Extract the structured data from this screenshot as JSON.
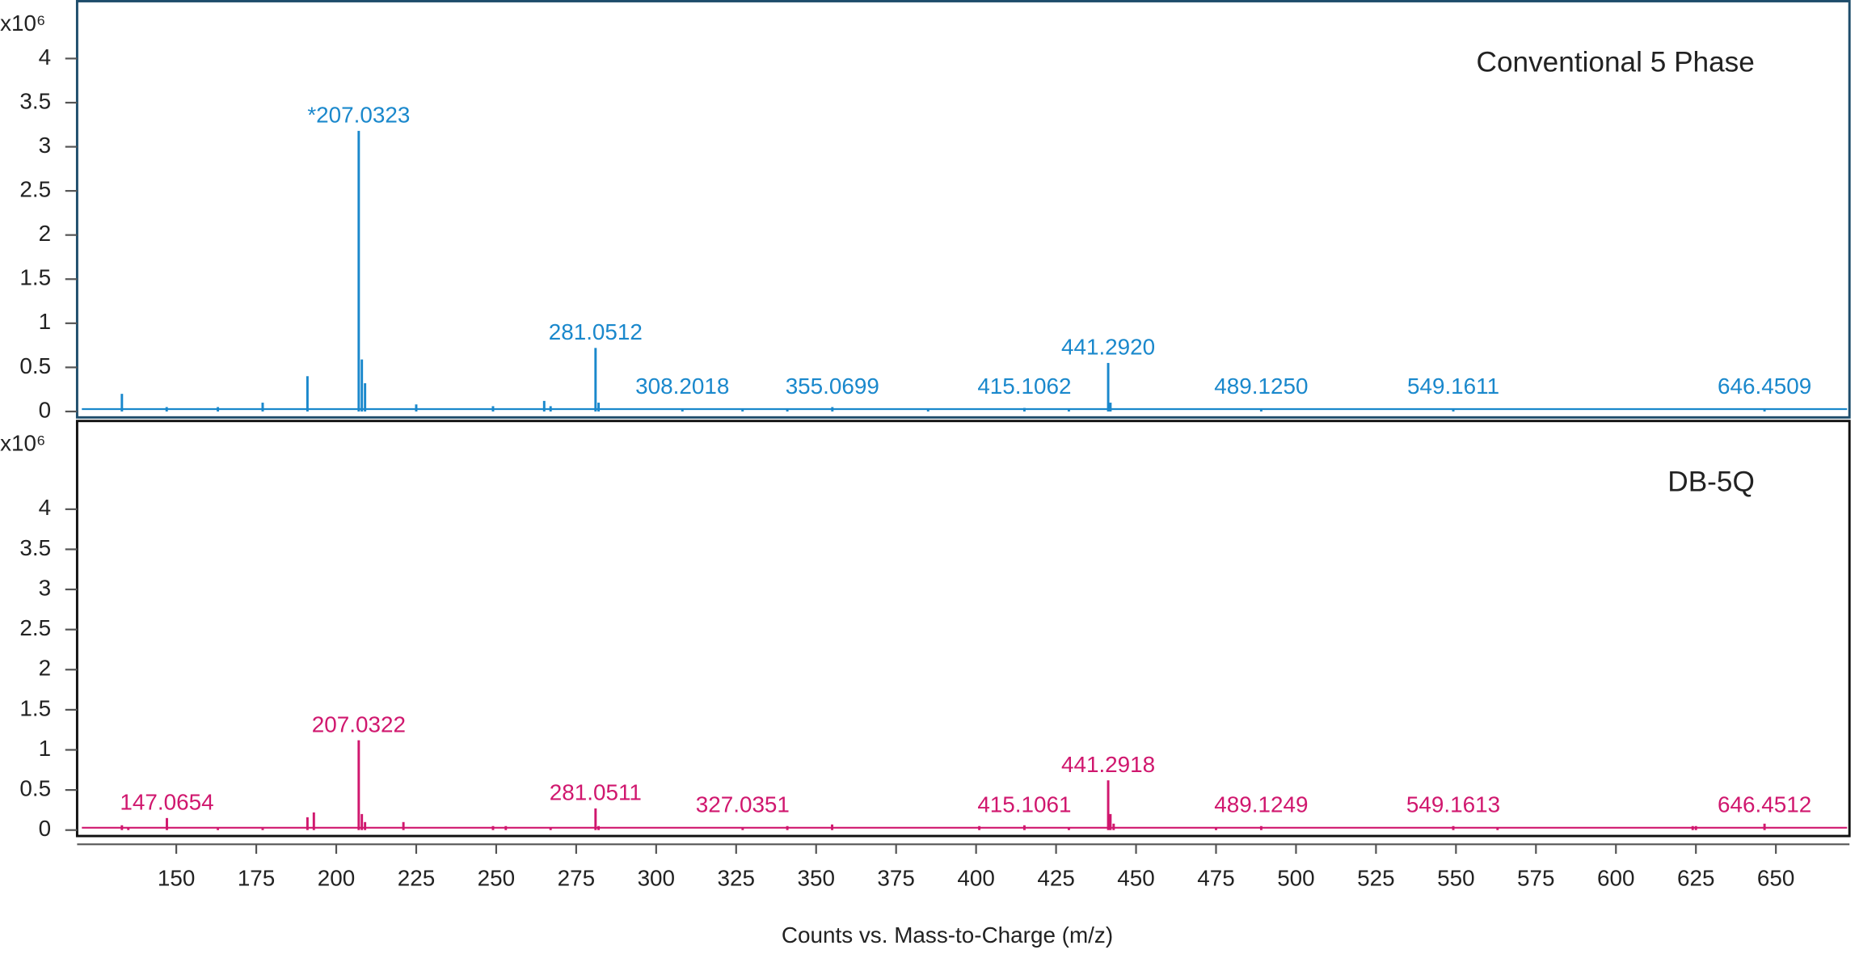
{
  "chart_data": [
    {
      "type": "stem",
      "title": "Conventional 5 Phase",
      "ylabel": "x10⁶",
      "color": "#1a88cc",
      "border": "#1e4d6b",
      "xlim": [
        119,
        673
      ],
      "ylim": [
        0,
        4.65
      ],
      "yticks": [
        0,
        0.5,
        1,
        1.5,
        2,
        2.5,
        3,
        3.5,
        4
      ],
      "x": [
        133,
        147,
        163,
        177,
        191,
        207.0323,
        208,
        209,
        225,
        249,
        265,
        267,
        281.0512,
        282,
        308.2018,
        327,
        341,
        355.0699,
        385,
        415.1062,
        429,
        441.292,
        442,
        489.125,
        549.1611,
        646.4509
      ],
      "values": [
        0.2,
        0.05,
        0.05,
        0.1,
        0.4,
        3.18,
        0.59,
        0.32,
        0.08,
        0.06,
        0.12,
        0.06,
        0.72,
        0.1,
        0.03,
        0.03,
        0.03,
        0.05,
        0.02,
        0.04,
        0.03,
        0.55,
        0.1,
        0.03,
        0.03,
        0.03
      ],
      "labels": [
        null,
        null,
        null,
        null,
        null,
        "*207.0323",
        null,
        null,
        null,
        null,
        null,
        null,
        "281.0512",
        null,
        "308.2018",
        null,
        null,
        "355.0699",
        null,
        "415.1062",
        null,
        "441.2920",
        null,
        "489.1250",
        "549.1611",
        "646.4509"
      ]
    },
    {
      "type": "stem",
      "title": "DB-5Q",
      "ylabel": "x10⁶",
      "color": "#d0176e",
      "border": "#111111",
      "xlim": [
        119,
        673
      ],
      "ylim": [
        0,
        5.1
      ],
      "yticks": [
        0,
        0.5,
        1,
        1.5,
        2,
        2.5,
        3,
        3.5,
        4
      ],
      "xticks": [
        150,
        175,
        200,
        225,
        250,
        275,
        300,
        325,
        350,
        375,
        400,
        425,
        450,
        475,
        500,
        525,
        550,
        575,
        600,
        625,
        650
      ],
      "xlabel": "Counts vs. Mass-to-Charge (m/z)",
      "x": [
        133,
        135,
        147.0654,
        163,
        177,
        191,
        193,
        207.0322,
        208,
        209,
        221,
        249,
        253,
        267,
        281.0511,
        282,
        327.0351,
        341,
        355,
        401,
        415.1061,
        429,
        441.2918,
        442,
        443,
        475,
        489.1249,
        549.1613,
        563,
        624,
        625,
        646.4512
      ],
      "values": [
        0.06,
        0.03,
        0.15,
        0.02,
        0.02,
        0.16,
        0.22,
        1.12,
        0.2,
        0.1,
        0.1,
        0.05,
        0.05,
        0.03,
        0.27,
        0.05,
        0.03,
        0.05,
        0.07,
        0.05,
        0.06,
        0.03,
        0.62,
        0.2,
        0.08,
        0.03,
        0.05,
        0.05,
        0.03,
        0.05,
        0.05,
        0.08
      ],
      "labels": [
        null,
        null,
        "147.0654",
        null,
        null,
        null,
        null,
        "207.0322",
        null,
        null,
        null,
        null,
        null,
        null,
        "281.0511",
        null,
        "327.0351",
        null,
        null,
        null,
        "415.1061",
        null,
        "441.2918",
        null,
        null,
        null,
        "489.1249",
        "549.1613",
        null,
        null,
        null,
        "646.4512"
      ]
    }
  ]
}
